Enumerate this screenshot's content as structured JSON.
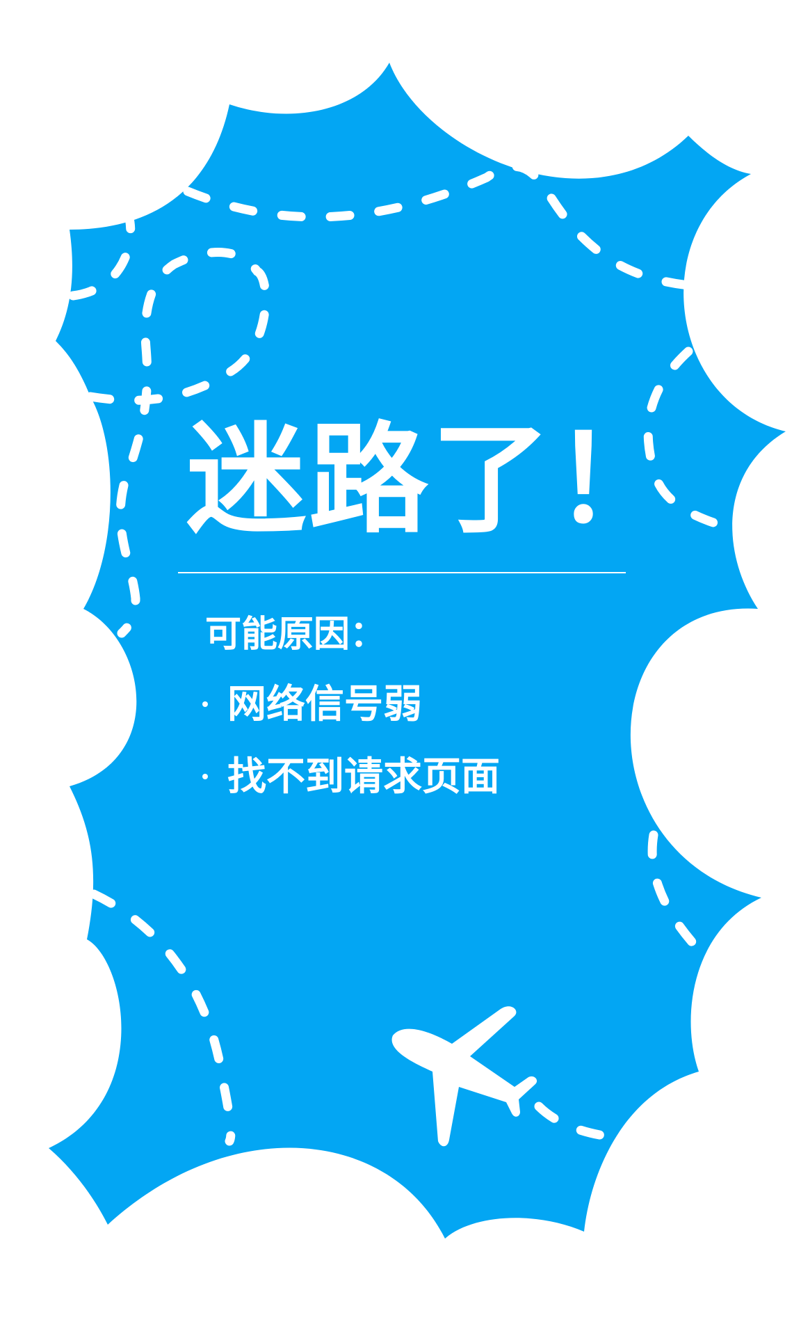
{
  "colors": {
    "sky": "#03a6f3",
    "cloud": "#ffffff",
    "text": "#ffffff"
  },
  "icons": {
    "airplane": "airplane-icon",
    "flight_path": "dashed-flight-path"
  },
  "headline": "迷路了！",
  "reasons": {
    "title": "可能原因：",
    "items": [
      "网络信号弱",
      "找不到请求页面"
    ]
  }
}
